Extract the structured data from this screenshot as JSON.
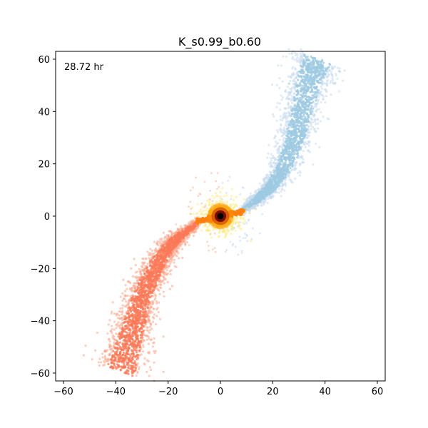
{
  "chart_data": {
    "type": "scatter",
    "title": "K_s0.99_b0.60",
    "annotation": "28.72 hr",
    "xlabel": "",
    "ylabel": "",
    "xlim": [
      -63,
      63
    ],
    "ylim": [
      -63,
      63
    ],
    "xticks": [
      -60,
      -40,
      -20,
      0,
      20,
      40,
      60
    ],
    "yticks": [
      -60,
      -40,
      -20,
      0,
      20,
      40,
      60
    ],
    "xtick_labels": [
      "−60",
      "−40",
      "−20",
      "0",
      "20",
      "40",
      "60"
    ],
    "ytick_labels": [
      "−60",
      "−40",
      "−20",
      "0",
      "20",
      "40",
      "60"
    ],
    "grid": false,
    "series": [
      {
        "color_inner": "#9ecae1",
        "color_outer": "#c6dbef",
        "path": [
          [
            8,
            2
          ],
          [
            12,
            5
          ],
          [
            16,
            8
          ],
          [
            20,
            12
          ],
          [
            24,
            18
          ],
          [
            27,
            25
          ],
          [
            29,
            32
          ],
          [
            31,
            40
          ],
          [
            33,
            48
          ],
          [
            35,
            55
          ],
          [
            37,
            60
          ]
        ],
        "spread": [
          0.6,
          1.0,
          1.5,
          2.0,
          2.5,
          3.0,
          3.3,
          3.6,
          4.0,
          4.5,
          5.0
        ]
      },
      {
        "color_inner": "#fb7a58",
        "color_outer": "#fca58a",
        "path": [
          [
            -8,
            -2
          ],
          [
            -12,
            -5
          ],
          [
            -16,
            -8
          ],
          [
            -20,
            -12
          ],
          [
            -24,
            -18
          ],
          [
            -27,
            -24
          ],
          [
            -30,
            -31
          ],
          [
            -32,
            -38
          ],
          [
            -34,
            -45
          ],
          [
            -36,
            -52
          ],
          [
            -38,
            -59
          ]
        ],
        "spread": [
          0.6,
          1.0,
          1.5,
          2.0,
          2.5,
          3.0,
          3.3,
          3.6,
          4.0,
          4.5,
          5.0
        ]
      },
      {
        "color_inner": "#ffd21f",
        "color_outer": "#ffe97a",
        "core": [
          0,
          0
        ],
        "radius": 8
      },
      {
        "color_inner": "#ff7f0e",
        "color_outer": "#ff8c1a",
        "bar": [
          [
            -9,
            -2
          ],
          [
            9,
            2
          ]
        ]
      }
    ]
  }
}
